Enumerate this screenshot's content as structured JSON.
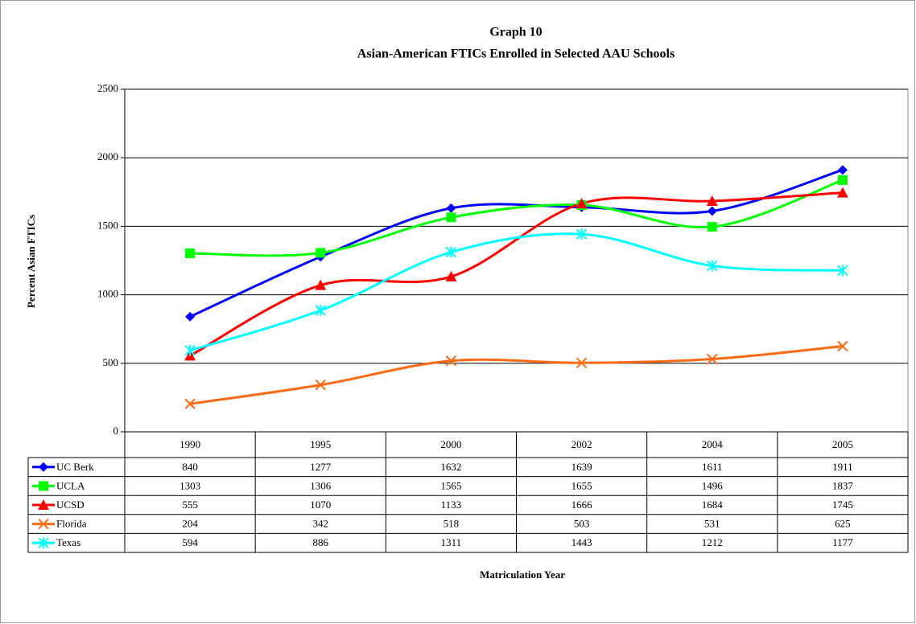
{
  "chart_data": {
    "type": "line",
    "title": "Graph 10",
    "subtitle": "Asian-American FTICs Enrolled in Selected AAU Schools",
    "y_label": "Percent Asian FTICs",
    "x_label": "Matriculation Year",
    "categories": [
      "1990",
      "1995",
      "2000",
      "2002",
      "2004",
      "2005"
    ],
    "ylim": [
      0,
      2500
    ],
    "yticks": [
      0,
      500,
      1000,
      1500,
      2000,
      2500
    ],
    "grid": true,
    "smooth": true,
    "series": [
      {
        "name": "UC Berk",
        "color": "#0000ff",
        "marker": "diamond",
        "values": [
          840,
          1277,
          1632,
          1639,
          1611,
          1911
        ]
      },
      {
        "name": "UCLA",
        "color": "#00ff00",
        "marker": "square",
        "values": [
          1303,
          1306,
          1565,
          1655,
          1496,
          1837
        ]
      },
      {
        "name": "UCSD",
        "color": "#ff0000",
        "marker": "triangle",
        "values": [
          555,
          1070,
          1133,
          1666,
          1684,
          1745
        ]
      },
      {
        "name": "Florida",
        "color": "#ff6a13",
        "marker": "x",
        "values": [
          204,
          342,
          518,
          503,
          531,
          625
        ]
      },
      {
        "name": "Texas",
        "color": "#00ffff",
        "marker": "star",
        "values": [
          594,
          886,
          1311,
          1443,
          1212,
          1177
        ]
      }
    ]
  }
}
